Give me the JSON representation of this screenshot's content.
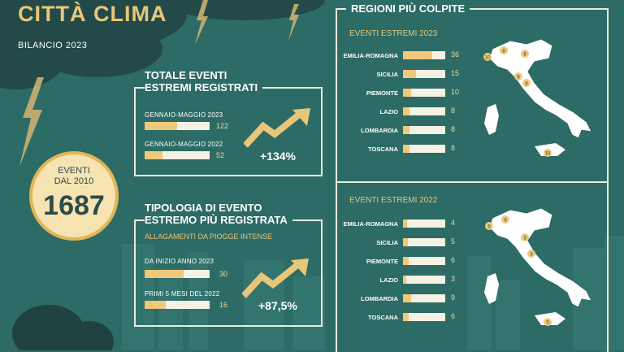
{
  "header": {
    "title": "CITTÀ CLIMA",
    "subtitle": "BILANCIO 2023"
  },
  "circle": {
    "line1": "EVENTI",
    "line2": "DAL 2010",
    "number": "1687"
  },
  "totals": {
    "title_line1": "TOTALE EVENTI",
    "title_line2": "ESTREMI REGISTRATI",
    "rows": [
      {
        "label": "GENNAIO-MAGGIO 2023",
        "value": "122",
        "fraction": 0.5
      },
      {
        "label": "GENNAIO-MAGGIO 2022",
        "value": "52",
        "fraction": 0.27
      }
    ],
    "change": "+134%"
  },
  "tipologia": {
    "title_line1": "TIPOLOGIA DI EVENTO",
    "title_line2": "ESTREMO PIÙ REGISTRATA",
    "subtitle": "ALLAGAMENTI DA PIOGGE INTENSE",
    "rows": [
      {
        "label": "DA INIZIO ANNO 2023",
        "value": "30",
        "fraction": 0.6
      },
      {
        "label": "PRIMI 5 MESI DEL 2022",
        "value": "16",
        "fraction": 0.32
      }
    ],
    "change": "+87,5%"
  },
  "regions": {
    "title": "REGIONI PIÙ COLPITE",
    "group2023": {
      "label": "EVENTI ESTREMI 2023",
      "rows": [
        {
          "name": "EMILIA-ROMAGNA",
          "value": "36",
          "fraction": 0.7
        },
        {
          "name": "SICILIA",
          "value": "15",
          "fraction": 0.3
        },
        {
          "name": "PIEMONTE",
          "value": "10",
          "fraction": 0.2
        },
        {
          "name": "LAZIO",
          "value": "8",
          "fraction": 0.16
        },
        {
          "name": "LOMBARDIA",
          "value": "8",
          "fraction": 0.16
        },
        {
          "name": "TOSCANA",
          "value": "8",
          "fraction": 0.16
        }
      ]
    },
    "group2022": {
      "label": "EVENTI ESTREMI 2022",
      "rows": [
        {
          "name": "EMILIA-ROMAGNA",
          "value": "4",
          "fraction": 0.1
        },
        {
          "name": "SICILIA",
          "value": "5",
          "fraction": 0.12
        },
        {
          "name": "PIEMONTE",
          "value": "6",
          "fraction": 0.14
        },
        {
          "name": "LAZIO",
          "value": "3",
          "fraction": 0.08
        },
        {
          "name": "LOMBARDIA",
          "value": "9",
          "fraction": 0.2
        },
        {
          "name": "TOSCANA",
          "value": "6",
          "fraction": 0.14
        }
      ]
    }
  },
  "map2023_badges": [
    "10",
    "8",
    "8",
    "8",
    "15",
    "8"
  ],
  "map2022_badges": [
    "6",
    "6",
    "3",
    "3",
    "5"
  ]
}
